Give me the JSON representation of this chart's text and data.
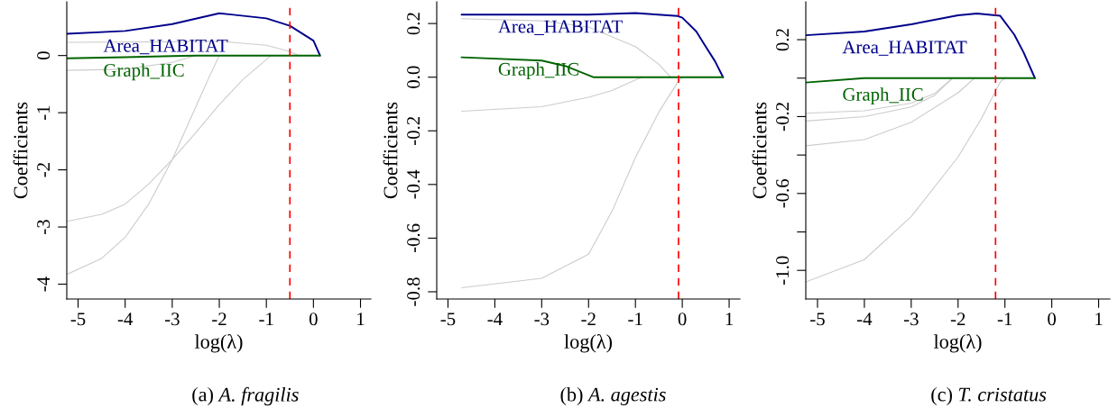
{
  "chart_data": [
    {
      "type": "line",
      "title": "(a) A. fragilis",
      "xlabel": "log(λ)",
      "ylabel": "Coefficients",
      "xlim": [
        -5.24,
        1.22
      ],
      "ylim": [
        -4.26,
        0.94
      ],
      "xticks": [
        -5,
        -4,
        -3,
        -2,
        -1,
        0,
        1
      ],
      "yticks": [
        -4,
        -3,
        -2,
        -1,
        0
      ],
      "grid": false,
      "legend": false,
      "ref_lines": [
        {
          "axis": "x",
          "value": -0.5,
          "color": "#ff0000",
          "line_style": "dashed"
        }
      ],
      "series": [
        {
          "color": "#cccccc",
          "x": [
            -5.24,
            -3,
            -2,
            -1,
            -0.5,
            -0.3
          ],
          "values": [
            0.23,
            0.24,
            0.25,
            0.18,
            0.07,
            0
          ]
        },
        {
          "color": "#cccccc",
          "x": [
            -5.24,
            -4,
            -3,
            -2.5
          ],
          "values": [
            -0.26,
            -0.24,
            -0.12,
            0
          ]
        },
        {
          "color": "#cccccc",
          "x": [
            -5.24,
            -4.5,
            -4,
            -3.5,
            -3,
            -2.5,
            -2.2,
            -2
          ],
          "values": [
            -3.83,
            -3.55,
            -3.18,
            -2.6,
            -1.82,
            -0.9,
            -0.35,
            0
          ]
        },
        {
          "color": "#cccccc",
          "x": [
            -5.24,
            -4.5,
            -4,
            -3.5,
            -3,
            -2.5,
            -2,
            -1.5,
            -0.9
          ],
          "values": [
            -2.9,
            -2.78,
            -2.6,
            -2.25,
            -1.82,
            -1.35,
            -0.86,
            -0.42,
            0
          ]
        },
        {
          "name": "Area_HABITAT",
          "color": "#00008b",
          "x": [
            -5.24,
            -4,
            -3,
            -2,
            -1,
            -0.5,
            0,
            0.14
          ],
          "values": [
            0.38,
            0.43,
            0.55,
            0.74,
            0.65,
            0.52,
            0.26,
            0
          ]
        },
        {
          "name": "Graph_IIC",
          "color": "#006400",
          "x": [
            -5.24,
            -4,
            -3,
            -2.5,
            0.14
          ],
          "values": [
            -0.05,
            -0.03,
            -0.01,
            0,
            0
          ]
        }
      ]
    },
    {
      "type": "line",
      "title": "(b) A. agestis",
      "xlabel": "log(λ)",
      "ylabel": "Coefficients",
      "xlim": [
        -5.24,
        1.23
      ],
      "ylim": [
        -0.827,
        0.281
      ],
      "xticks": [
        -5,
        -4,
        -3,
        -2,
        -1,
        0,
        1
      ],
      "yticks": [
        {
          "value": -0.8,
          "label": "-0.8"
        },
        {
          "value": -0.6,
          "label": "-0.6"
        },
        {
          "value": -0.4,
          "label": "-0.4"
        },
        {
          "value": -0.2,
          "label": "-0.2"
        },
        {
          "value": 0,
          "label": "0.0"
        },
        {
          "value": 0.2,
          "label": "0.2"
        }
      ],
      "grid": false,
      "legend": false,
      "ref_lines": [
        {
          "axis": "x",
          "value": -0.08,
          "color": "#ff0000",
          "line_style": "dashed"
        }
      ],
      "series": [
        {
          "color": "#cccccc",
          "x": [
            -4.71,
            -3,
            -2,
            -1,
            -0.5,
            -0.25
          ],
          "values": [
            0.218,
            0.21,
            0.187,
            0.114,
            0.048,
            0
          ]
        },
        {
          "color": "#cccccc",
          "x": [
            -4.71,
            -3,
            -2,
            -1.5,
            -1,
            -0.85
          ],
          "values": [
            -0.127,
            -0.11,
            -0.075,
            -0.05,
            -0.01,
            0
          ]
        },
        {
          "color": "#cccccc",
          "x": [
            -4.71,
            -3,
            -2,
            -1.5,
            -1,
            -0.5,
            -0.1,
            0
          ],
          "values": [
            -0.785,
            -0.75,
            -0.66,
            -0.5,
            -0.3,
            -0.13,
            -0.02,
            0
          ]
        },
        {
          "name": "Area_HABITAT",
          "color": "#00008b",
          "x": [
            -4.71,
            -2,
            -1,
            -0.1,
            0,
            0.3,
            0.5,
            0.7,
            0.87
          ],
          "values": [
            0.233,
            0.233,
            0.239,
            0.228,
            0.222,
            0.17,
            0.114,
            0.059,
            0
          ]
        },
        {
          "name": "Graph_IIC",
          "color": "#006400",
          "x": [
            -4.71,
            -3,
            -2.5,
            -1.9,
            0.87
          ],
          "values": [
            0.074,
            0.062,
            0.042,
            0,
            0
          ]
        }
      ]
    },
    {
      "type": "line",
      "title": "(c) T. cristatus",
      "xlabel": "log(λ)",
      "ylabel": "Coefficients",
      "xlim": [
        -5.25,
        1.24
      ],
      "ylim": [
        -1.149,
        0.397
      ],
      "xticks": [
        -5,
        -4,
        -3,
        -2,
        -1,
        0,
        1
      ],
      "yticks": [
        {
          "value": -1.0,
          "label": "-1.0"
        },
        {
          "value": -0.8,
          "label": null
        },
        {
          "value": -0.6,
          "label": "-0.6"
        },
        {
          "value": -0.4,
          "label": null
        },
        {
          "value": -0.2,
          "label": "-0.2"
        },
        {
          "value": 0,
          "label": null
        },
        {
          "value": 0.2,
          "label": "0.2"
        }
      ],
      "grid": false,
      "legend": false,
      "ref_lines": [
        {
          "axis": "x",
          "value": -1.2,
          "color": "#ff0000",
          "line_style": "dashed"
        }
      ],
      "series": [
        {
          "color": "#cccccc",
          "x": [
            -5.25,
            -4,
            -3,
            -2.5,
            -2.12
          ],
          "values": [
            -0.183,
            -0.17,
            -0.13,
            -0.08,
            0
          ]
        },
        {
          "color": "#cccccc",
          "x": [
            -5.25,
            -4,
            -3,
            -2.5,
            -2.12
          ],
          "values": [
            -0.223,
            -0.2,
            -0.15,
            -0.09,
            0
          ]
        },
        {
          "color": "#cccccc",
          "x": [
            -5.25,
            -4,
            -3,
            -2,
            -1.65
          ],
          "values": [
            -0.352,
            -0.32,
            -0.23,
            -0.076,
            0
          ]
        },
        {
          "color": "#cccccc",
          "x": [
            -5.25,
            -4,
            -3,
            -2,
            -1.5,
            -1.1,
            -1.0
          ],
          "values": [
            -1.06,
            -0.944,
            -0.72,
            -0.41,
            -0.21,
            -0.02,
            0
          ]
        },
        {
          "name": "Area_HABITAT",
          "color": "#00008b",
          "x": [
            -5.25,
            -4,
            -3,
            -2,
            -1.6,
            -1.1,
            -0.8,
            -0.6,
            -0.36
          ],
          "values": [
            0.223,
            0.242,
            0.28,
            0.327,
            0.336,
            0.324,
            0.226,
            0.133,
            0
          ]
        },
        {
          "name": "Graph_IIC",
          "color": "#006400",
          "x": [
            -5.25,
            -4,
            -0.36
          ],
          "values": [
            -0.023,
            0,
            0
          ]
        }
      ]
    }
  ]
}
